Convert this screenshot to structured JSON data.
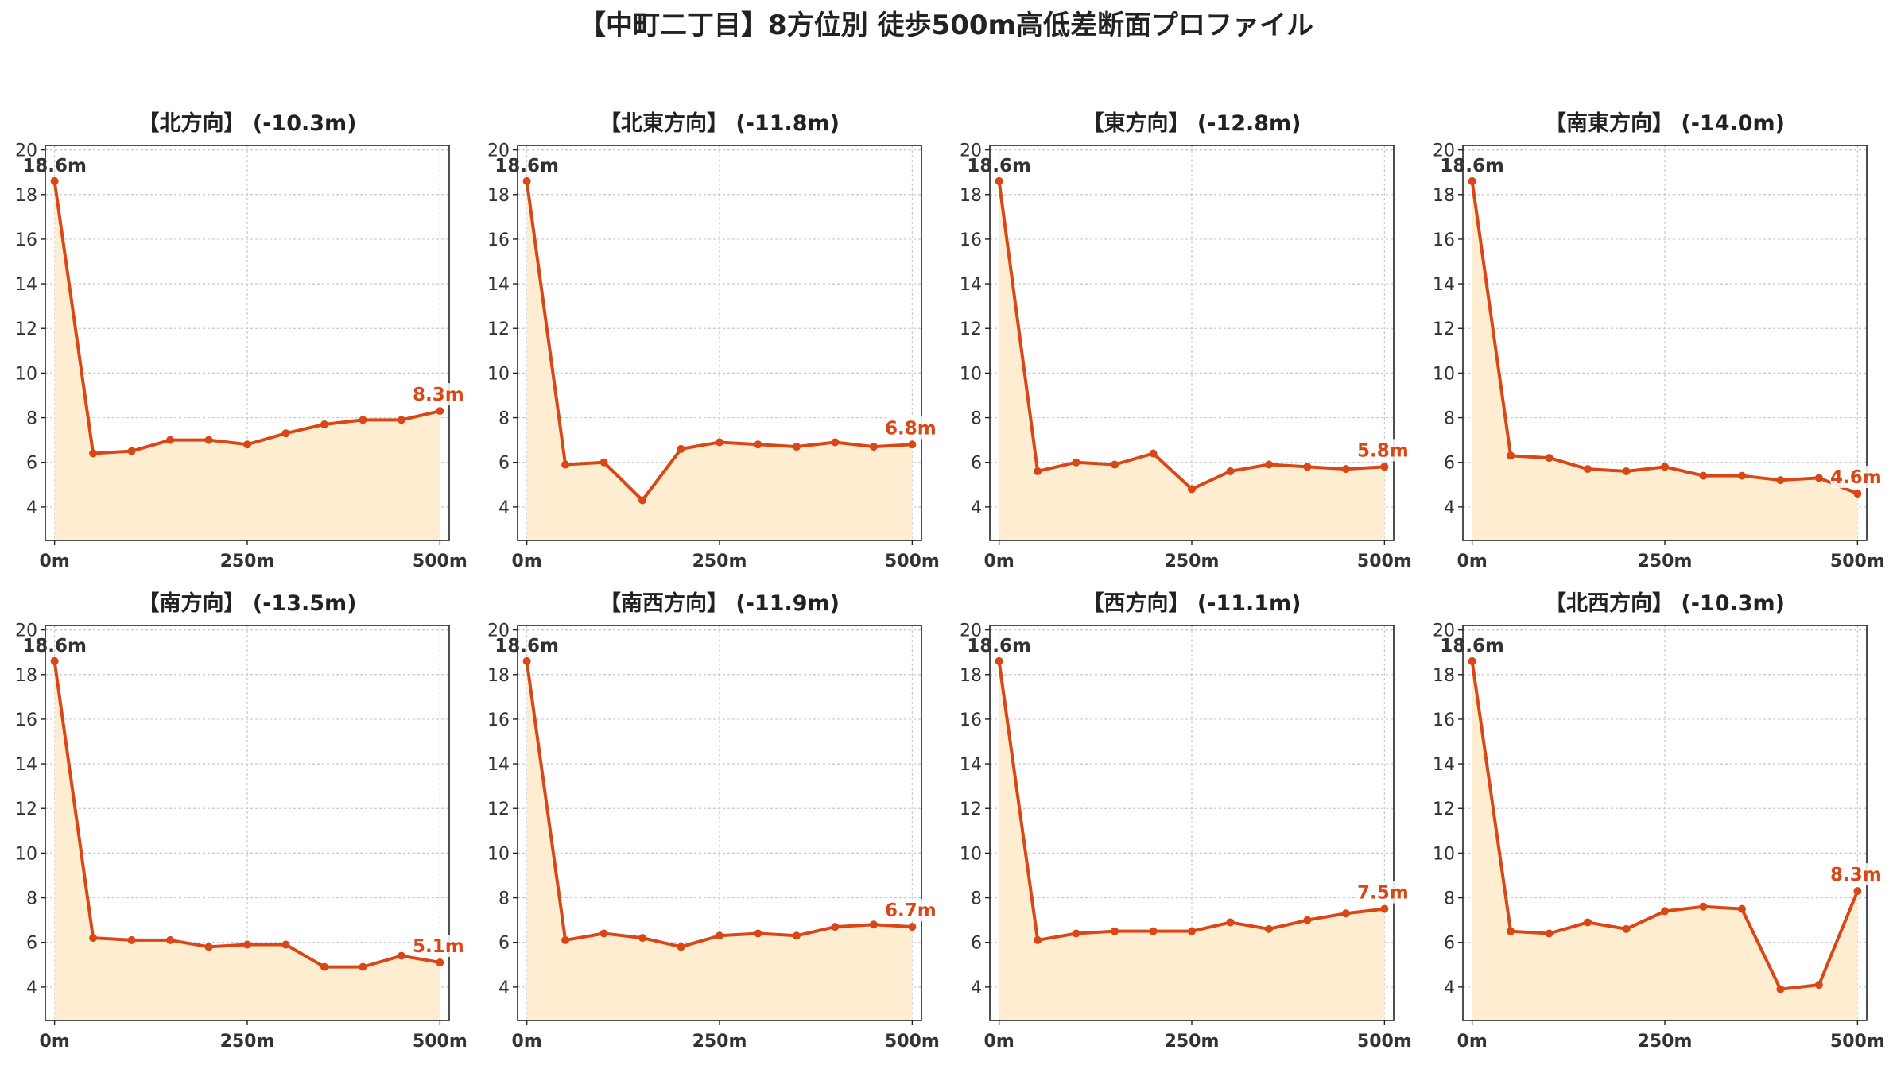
{
  "title": "【中町二丁目】8方位別 徒歩500m高低差断面プロファイル",
  "colors": {
    "line": "#d94717",
    "fill": "#ffedd2",
    "grid": "#c8c8c8",
    "start_label": "#333333",
    "end_label": "#d94717"
  },
  "chart_data": [
    {
      "type": "area",
      "title": "【北方向】 (-10.3m)",
      "x": [
        0,
        50,
        100,
        150,
        200,
        250,
        300,
        350,
        400,
        450,
        500
      ],
      "values": [
        18.6,
        6.4,
        6.5,
        7.0,
        7.0,
        6.8,
        7.3,
        7.7,
        7.9,
        7.9,
        8.3
      ],
      "start_label": "18.6m",
      "end_label": "8.3m"
    },
    {
      "type": "area",
      "title": "【北東方向】 (-11.8m)",
      "x": [
        0,
        50,
        100,
        150,
        200,
        250,
        300,
        350,
        400,
        450,
        500
      ],
      "values": [
        18.6,
        5.9,
        6.0,
        4.3,
        6.6,
        6.9,
        6.8,
        6.7,
        6.9,
        6.7,
        6.8
      ],
      "start_label": "18.6m",
      "end_label": "6.8m"
    },
    {
      "type": "area",
      "title": "【東方向】 (-12.8m)",
      "x": [
        0,
        50,
        100,
        150,
        200,
        250,
        300,
        350,
        400,
        450,
        500
      ],
      "values": [
        18.6,
        5.6,
        6.0,
        5.9,
        6.4,
        4.8,
        5.6,
        5.9,
        5.8,
        5.7,
        5.8
      ],
      "start_label": "18.6m",
      "end_label": "5.8m"
    },
    {
      "type": "area",
      "title": "【南東方向】 (-14.0m)",
      "x": [
        0,
        50,
        100,
        150,
        200,
        250,
        300,
        350,
        400,
        450,
        500
      ],
      "values": [
        18.6,
        6.3,
        6.2,
        5.7,
        5.6,
        5.8,
        5.4,
        5.4,
        5.2,
        5.3,
        4.6
      ],
      "start_label": "18.6m",
      "end_label": "4.6m"
    },
    {
      "type": "area",
      "title": "【南方向】 (-13.5m)",
      "x": [
        0,
        50,
        100,
        150,
        200,
        250,
        300,
        350,
        400,
        450,
        500
      ],
      "values": [
        18.6,
        6.2,
        6.1,
        6.1,
        5.8,
        5.9,
        5.9,
        4.9,
        4.9,
        5.4,
        5.1
      ],
      "start_label": "18.6m",
      "end_label": "5.1m"
    },
    {
      "type": "area",
      "title": "【南西方向】 (-11.9m)",
      "x": [
        0,
        50,
        100,
        150,
        200,
        250,
        300,
        350,
        400,
        450,
        500
      ],
      "values": [
        18.6,
        6.1,
        6.4,
        6.2,
        5.8,
        6.3,
        6.4,
        6.3,
        6.7,
        6.8,
        6.7
      ],
      "start_label": "18.6m",
      "end_label": "6.7m"
    },
    {
      "type": "area",
      "title": "【西方向】 (-11.1m)",
      "x": [
        0,
        50,
        100,
        150,
        200,
        250,
        300,
        350,
        400,
        450,
        500
      ],
      "values": [
        18.6,
        6.1,
        6.4,
        6.5,
        6.5,
        6.5,
        6.9,
        6.6,
        7.0,
        7.3,
        7.5
      ],
      "start_label": "18.6m",
      "end_label": "7.5m"
    },
    {
      "type": "area",
      "title": "【北西方向】 (-10.3m)",
      "x": [
        0,
        50,
        100,
        150,
        200,
        250,
        300,
        350,
        400,
        450,
        500
      ],
      "values": [
        18.6,
        6.5,
        6.4,
        6.9,
        6.6,
        7.4,
        7.6,
        7.5,
        3.9,
        4.1,
        8.3
      ],
      "start_label": "18.6m",
      "end_label": "8.3m"
    }
  ],
  "axes": {
    "y_ticks": [
      4,
      6,
      8,
      10,
      12,
      14,
      16,
      18,
      20
    ],
    "ylim": [
      2.5,
      20.2
    ],
    "x_ticks": [
      0,
      250,
      500
    ],
    "x_tick_labels": [
      "0m",
      "250m",
      "500m"
    ],
    "xlim": [
      -12,
      512
    ],
    "grid": true
  }
}
